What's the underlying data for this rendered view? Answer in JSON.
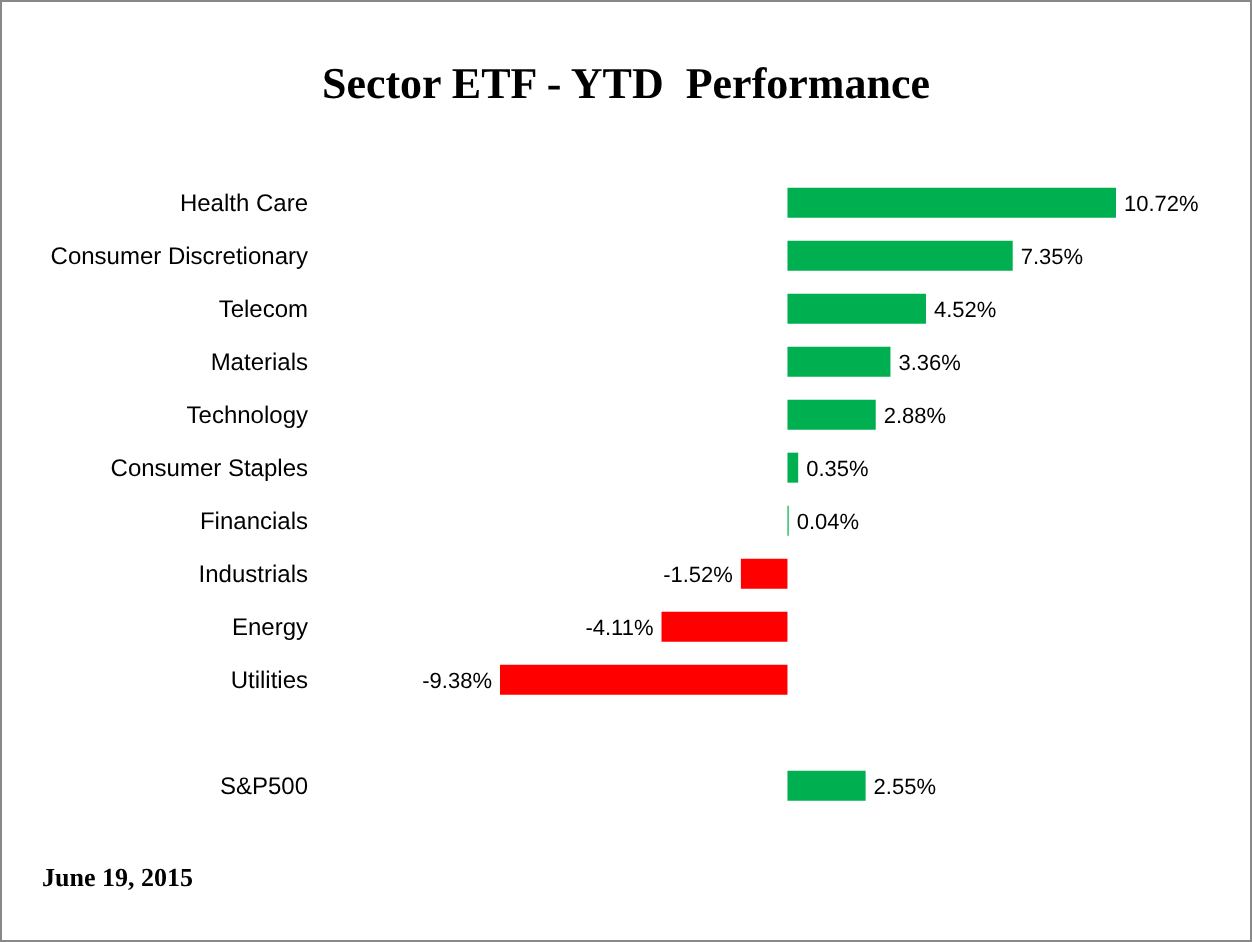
{
  "chart_data": {
    "type": "bar",
    "orientation": "horizontal",
    "title": "Sector ETF - YTD  Performance",
    "categories": [
      "Health Care",
      "Consumer Discretionary",
      "Telecom",
      "Materials",
      "Technology",
      "Consumer Staples",
      "Financials",
      "Industrials",
      "Energy",
      "Utilities",
      null,
      "S&P500"
    ],
    "values": [
      10.72,
      7.35,
      4.52,
      3.36,
      2.88,
      0.35,
      0.04,
      -1.52,
      -4.11,
      -9.38,
      null,
      2.55
    ],
    "colors": [
      "#00b050",
      "#00b050",
      "#00b050",
      "#00b050",
      "#00b050",
      "#00b050",
      "#00b050",
      "#ff0000",
      "#ff0000",
      "#ff0000",
      "#00b050",
      "#00b050"
    ],
    "value_labels": [
      "10.72%",
      "7.35%",
      "4.52%",
      "3.36%",
      "2.88%",
      "0.35%",
      "0.04%",
      "-1.52%",
      "-4.11%",
      "-9.38%",
      null,
      "2.55%"
    ],
    "annotations": [
      "June 19, 2015"
    ],
    "legend": false,
    "grid": false
  }
}
